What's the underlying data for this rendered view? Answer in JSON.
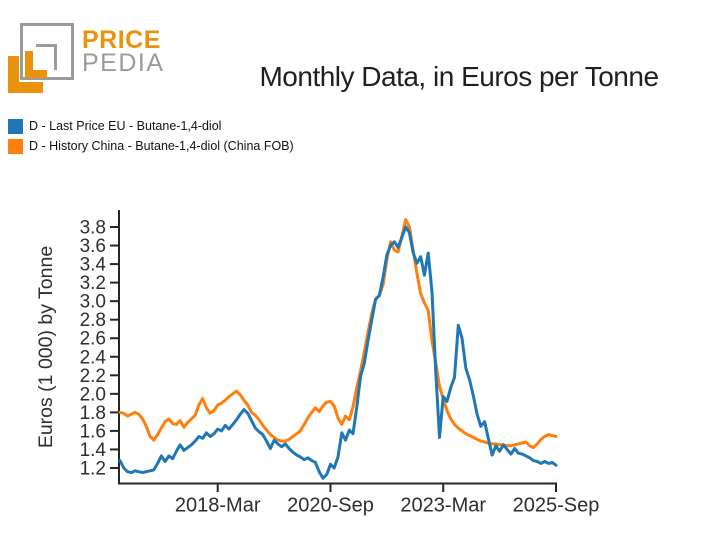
{
  "header": {
    "logo_price": "PRICE",
    "logo_pedia": "PEDIA",
    "title": "Monthly Data, in Euros per Tonne"
  },
  "colors": {
    "eu_blue": "#1f77b4",
    "china_orange": "#ff7f0e",
    "logo_orange": "#e8920e",
    "logo_gray": "#9b9b9b",
    "axis": "#262626"
  },
  "legend": [
    {
      "label": "D - Last Price EU - Butane-1,4-diol",
      "color": "#1f77b4"
    },
    {
      "label": "D - History China - Butane-1,4-diol (China FOB)",
      "color": "#ff7f0e"
    }
  ],
  "chart_data": {
    "type": "line",
    "title": "Monthly Data, in Euros per Tonne",
    "xlabel": "",
    "ylabel": "Euros (1 000) by Tonne",
    "x_start": "2016-Jan",
    "x_end": "2025-Sep",
    "x_frequency": "monthly",
    "x_tick_labels": [
      "2018-Mar",
      "2020-Sep",
      "2023-Mar",
      "2025-Sep"
    ],
    "x_tick_indices": [
      26,
      56,
      86,
      116
    ],
    "y_ticks": [
      1.2,
      1.4,
      1.6,
      1.8,
      2.0,
      2.2,
      2.4,
      2.6,
      2.8,
      3.0,
      3.2,
      3.4,
      3.6,
      3.8
    ],
    "ylim": [
      1.04,
      3.98
    ],
    "grid": false,
    "legend_position": "top-left",
    "series": [
      {
        "name": "D - Last Price EU - Butane-1,4-diol",
        "color": "#1f77b4",
        "values": [
          1.28,
          1.2,
          1.16,
          1.15,
          1.17,
          1.16,
          1.15,
          1.16,
          1.17,
          1.18,
          1.25,
          1.33,
          1.27,
          1.33,
          1.3,
          1.38,
          1.45,
          1.39,
          1.42,
          1.45,
          1.49,
          1.54,
          1.52,
          1.58,
          1.54,
          1.57,
          1.62,
          1.6,
          1.66,
          1.62,
          1.67,
          1.72,
          1.78,
          1.83,
          1.79,
          1.71,
          1.63,
          1.59,
          1.56,
          1.49,
          1.41,
          1.5,
          1.46,
          1.43,
          1.46,
          1.41,
          1.37,
          1.34,
          1.32,
          1.29,
          1.31,
          1.28,
          1.26,
          1.16,
          1.09,
          1.13,
          1.24,
          1.2,
          1.32,
          1.58,
          1.5,
          1.61,
          1.57,
          1.86,
          2.19,
          2.33,
          2.58,
          2.8,
          3.02,
          3.06,
          3.26,
          3.5,
          3.6,
          3.64,
          3.58,
          3.69,
          3.8,
          3.74,
          3.52,
          3.41,
          3.48,
          3.28,
          3.52,
          3.1,
          2.25,
          1.53,
          1.97,
          1.92,
          2.07,
          2.18,
          2.74,
          2.6,
          2.28,
          2.15,
          1.98,
          1.78,
          1.65,
          1.7,
          1.52,
          1.34,
          1.44,
          1.38,
          1.45,
          1.4,
          1.35,
          1.41,
          1.36,
          1.35,
          1.33,
          1.31,
          1.28,
          1.27,
          1.25,
          1.27,
          1.25,
          1.26,
          1.23
        ]
      },
      {
        "name": "D - History China - Butane-1,4-diol (China FOB)",
        "color": "#ff7f0e",
        "values": [
          1.8,
          1.79,
          1.76,
          1.78,
          1.8,
          1.78,
          1.73,
          1.65,
          1.54,
          1.5,
          1.56,
          1.63,
          1.7,
          1.73,
          1.68,
          1.67,
          1.71,
          1.64,
          1.69,
          1.73,
          1.77,
          1.88,
          1.95,
          1.85,
          1.79,
          1.82,
          1.88,
          1.9,
          1.93,
          1.97,
          2.0,
          2.03,
          1.99,
          1.93,
          1.88,
          1.8,
          1.77,
          1.72,
          1.66,
          1.61,
          1.56,
          1.53,
          1.5,
          1.49,
          1.49,
          1.51,
          1.54,
          1.57,
          1.6,
          1.67,
          1.74,
          1.8,
          1.85,
          1.81,
          1.87,
          1.91,
          1.92,
          1.87,
          1.74,
          1.67,
          1.76,
          1.72,
          1.86,
          2.07,
          2.25,
          2.45,
          2.67,
          2.87,
          3.02,
          3.06,
          3.18,
          3.45,
          3.64,
          3.55,
          3.53,
          3.7,
          3.88,
          3.8,
          3.55,
          3.3,
          3.08,
          2.98,
          2.9,
          2.57,
          2.34,
          2.08,
          1.95,
          1.82,
          1.73,
          1.67,
          1.63,
          1.6,
          1.57,
          1.55,
          1.53,
          1.51,
          1.49,
          1.48,
          1.47,
          1.46,
          1.46,
          1.45,
          1.45,
          1.44,
          1.44,
          1.45,
          1.46,
          1.47,
          1.48,
          1.44,
          1.42,
          1.46,
          1.51,
          1.54,
          1.56,
          1.55,
          1.54
        ]
      }
    ]
  }
}
